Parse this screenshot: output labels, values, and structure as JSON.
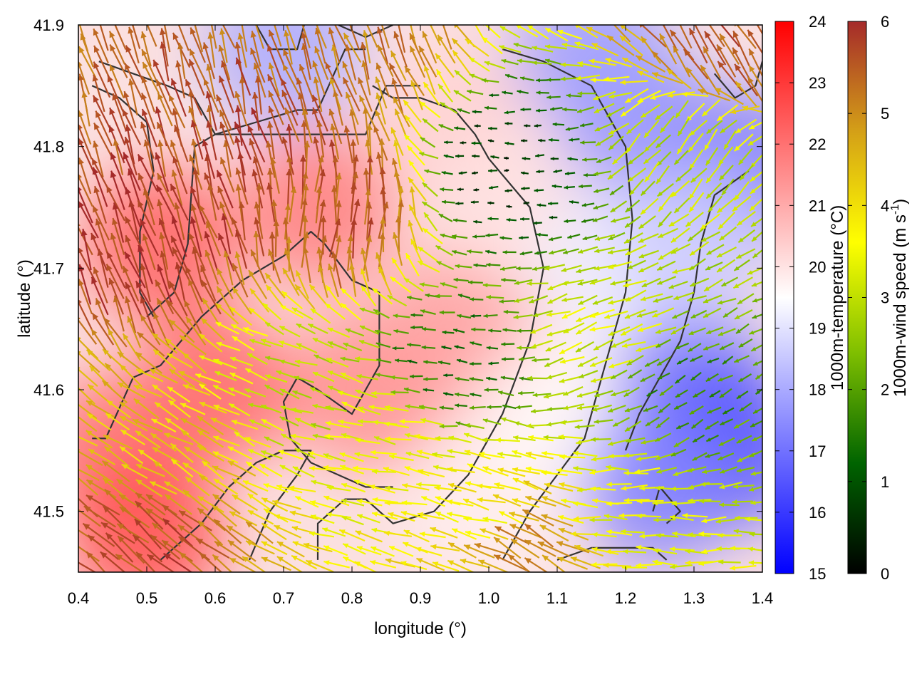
{
  "chart_data": {
    "type": "heatmap",
    "title": "",
    "xlabel": "longitude (°)",
    "ylabel": "latitude (°)",
    "xlim": [
      0.4,
      1.4
    ],
    "ylim": [
      41.45,
      41.9
    ],
    "xticks": [
      "0.4",
      "0.5",
      "0.6",
      "0.7",
      "0.8",
      "0.9",
      "1.0",
      "1.1",
      "1.2",
      "1.3",
      "1.4"
    ],
    "yticks": [
      "41.5",
      "41.6",
      "41.7",
      "41.8",
      "41.9"
    ],
    "temperature_colorbar": {
      "label": "1000m-temperature (°C)",
      "range": [
        15,
        24
      ],
      "ticks": [
        "15",
        "16",
        "17",
        "18",
        "19",
        "20",
        "21",
        "22",
        "23",
        "24"
      ],
      "colors": [
        "#0000ff",
        "#ffffff",
        "#ff0000"
      ]
    },
    "wind_colorbar": {
      "label_main": "1000m-wind speed (m s",
      "label_sup": "-1",
      "label_end": ")",
      "range": [
        0,
        6
      ],
      "ticks": [
        "0",
        "1",
        "2",
        "3",
        "4",
        "5",
        "6"
      ],
      "colors": [
        "#000000",
        "#006400",
        "#7fbf00",
        "#ffff00",
        "#d4a017",
        "#a52a2a"
      ]
    },
    "temperature_regions": [
      {
        "lon": 0.52,
        "lat": 41.72,
        "t": 22.3
      },
      {
        "lon": 0.45,
        "lat": 41.55,
        "t": 22.0
      },
      {
        "lon": 0.6,
        "lat": 41.6,
        "t": 22.2
      },
      {
        "lon": 0.75,
        "lat": 41.75,
        "t": 21.8
      },
      {
        "lon": 0.5,
        "lat": 41.48,
        "t": 22.6
      },
      {
        "lon": 0.82,
        "lat": 41.6,
        "t": 21.5
      },
      {
        "lon": 0.95,
        "lat": 41.65,
        "t": 21.2
      },
      {
        "lon": 0.95,
        "lat": 41.82,
        "t": 20.3
      },
      {
        "lon": 1.05,
        "lat": 41.75,
        "t": 20.0
      },
      {
        "lon": 1.0,
        "lat": 41.5,
        "t": 19.8
      },
      {
        "lon": 1.1,
        "lat": 41.58,
        "t": 19.6
      },
      {
        "lon": 1.18,
        "lat": 41.7,
        "t": 19.2
      },
      {
        "lon": 1.3,
        "lat": 41.6,
        "t": 17.0
      },
      {
        "lon": 1.35,
        "lat": 41.55,
        "t": 16.4
      },
      {
        "lon": 1.25,
        "lat": 41.52,
        "t": 17.3
      },
      {
        "lon": 1.22,
        "lat": 41.82,
        "t": 17.6
      },
      {
        "lon": 1.15,
        "lat": 41.88,
        "t": 17.8
      },
      {
        "lon": 0.7,
        "lat": 41.88,
        "t": 18.0
      },
      {
        "lon": 1.38,
        "lat": 41.78,
        "t": 17.2
      },
      {
        "lon": 1.3,
        "lat": 41.72,
        "t": 18.6
      }
    ],
    "wind_regions": [
      {
        "lon": 0.5,
        "lat": 41.72,
        "speed": 5.8,
        "dir_deg": 110
      },
      {
        "lon": 0.65,
        "lat": 41.8,
        "speed": 5.6,
        "dir_deg": 105
      },
      {
        "lon": 0.78,
        "lat": 41.75,
        "speed": 5.5,
        "dir_deg": 85
      },
      {
        "lon": 0.55,
        "lat": 41.55,
        "speed": 4.2,
        "dir_deg": 150
      },
      {
        "lon": 0.72,
        "lat": 41.6,
        "speed": 3.0,
        "dir_deg": 160
      },
      {
        "lon": 0.5,
        "lat": 41.47,
        "speed": 5.6,
        "dir_deg": 140
      },
      {
        "lon": 0.85,
        "lat": 41.55,
        "speed": 3.5,
        "dir_deg": 170
      },
      {
        "lon": 0.95,
        "lat": 41.62,
        "speed": 1.4,
        "dir_deg": 175
      },
      {
        "lon": 1.03,
        "lat": 41.78,
        "speed": 0.7,
        "dir_deg": 180
      },
      {
        "lon": 1.0,
        "lat": 41.5,
        "speed": 3.8,
        "dir_deg": 165
      },
      {
        "lon": 1.18,
        "lat": 41.65,
        "speed": 3.2,
        "dir_deg": 200
      },
      {
        "lon": 1.28,
        "lat": 41.6,
        "speed": 1.8,
        "dir_deg": 210
      },
      {
        "lon": 1.3,
        "lat": 41.8,
        "speed": 3.0,
        "dir_deg": 230
      },
      {
        "lon": 1.35,
        "lat": 41.88,
        "speed": 5.5,
        "dir_deg": 120
      },
      {
        "lon": 0.8,
        "lat": 41.88,
        "speed": 5.2,
        "dir_deg": 110
      },
      {
        "lon": 1.05,
        "lat": 41.47,
        "speed": 5.0,
        "dir_deg": 150
      },
      {
        "lon": 1.2,
        "lat": 41.5,
        "speed": 3.4,
        "dir_deg": 180
      }
    ],
    "contours": [
      [
        [
          0.42,
          41.56
        ],
        [
          0.44,
          41.56
        ],
        [
          0.48,
          41.61
        ],
        [
          0.52,
          41.62
        ],
        [
          0.58,
          41.66
        ],
        [
          0.64,
          41.69
        ],
        [
          0.7,
          41.71
        ],
        [
          0.74,
          41.73
        ],
        [
          0.76,
          41.72
        ],
        [
          0.8,
          41.69
        ],
        [
          0.84,
          41.68
        ],
        [
          0.84,
          41.62
        ],
        [
          0.82,
          41.6
        ],
        [
          0.8,
          41.58
        ],
        [
          0.75,
          41.6
        ],
        [
          0.72,
          41.61
        ],
        [
          0.7,
          41.59
        ],
        [
          0.71,
          41.56
        ],
        [
          0.74,
          41.54
        ],
        [
          0.78,
          41.53
        ],
        [
          0.82,
          41.52
        ],
        [
          0.86,
          41.52
        ]
      ],
      [
        [
          0.52,
          41.46
        ],
        [
          0.58,
          41.49
        ],
        [
          0.62,
          41.52
        ],
        [
          0.66,
          41.54
        ],
        [
          0.7,
          41.55
        ],
        [
          0.74,
          41.55
        ],
        [
          0.72,
          41.53
        ],
        [
          0.68,
          41.5
        ],
        [
          0.65,
          41.46
        ]
      ],
      [
        [
          0.5,
          41.66
        ],
        [
          0.54,
          41.68
        ],
        [
          0.56,
          41.72
        ],
        [
          0.57,
          41.8
        ],
        [
          0.6,
          41.81
        ],
        [
          0.66,
          41.81
        ],
        [
          0.72,
          41.81
        ],
        [
          0.78,
          41.81
        ],
        [
          0.82,
          41.81
        ],
        [
          0.85,
          41.85
        ],
        [
          0.9,
          41.85
        ]
      ],
      [
        [
          0.43,
          41.87
        ],
        [
          0.48,
          41.86
        ],
        [
          0.53,
          41.85
        ],
        [
          0.57,
          41.84
        ],
        [
          0.6,
          41.81
        ],
        [
          0.66,
          41.82
        ],
        [
          0.72,
          41.83
        ],
        [
          0.75,
          41.83
        ],
        [
          0.79,
          41.88
        ],
        [
          0.82,
          41.88
        ]
      ],
      [
        [
          0.42,
          41.85
        ],
        [
          0.46,
          41.84
        ],
        [
          0.5,
          41.82
        ],
        [
          0.51,
          41.78
        ],
        [
          0.49,
          41.73
        ],
        [
          0.49,
          41.68
        ],
        [
          0.51,
          41.66
        ]
      ],
      [
        [
          0.66,
          41.9
        ],
        [
          0.68,
          41.88
        ],
        [
          0.72,
          41.88
        ],
        [
          0.73,
          41.9
        ]
      ],
      [
        [
          0.78,
          41.9
        ],
        [
          0.82,
          41.89
        ],
        [
          0.86,
          41.9
        ]
      ],
      [
        [
          0.75,
          41.46
        ],
        [
          0.75,
          41.49
        ],
        [
          0.79,
          41.51
        ],
        [
          0.82,
          41.51
        ],
        [
          0.86,
          41.49
        ],
        [
          0.92,
          41.5
        ],
        [
          0.97,
          41.53
        ],
        [
          1.02,
          41.58
        ],
        [
          1.06,
          41.64
        ],
        [
          1.08,
          41.7
        ],
        [
          1.06,
          41.75
        ],
        [
          1.0,
          41.79
        ],
        [
          0.98,
          41.81
        ],
        [
          0.95,
          41.83
        ],
        [
          0.9,
          41.84
        ],
        [
          0.86,
          41.84
        ],
        [
          0.83,
          41.85
        ]
      ],
      [
        [
          1.02,
          41.46
        ],
        [
          1.06,
          41.5
        ],
        [
          1.1,
          41.53
        ],
        [
          1.14,
          41.56
        ],
        [
          1.17,
          41.62
        ],
        [
          1.2,
          41.68
        ],
        [
          1.21,
          41.74
        ],
        [
          1.2,
          41.8
        ],
        [
          1.15,
          41.85
        ],
        [
          1.08,
          41.87
        ],
        [
          1.02,
          41.88
        ]
      ],
      [
        [
          1.1,
          41.46
        ],
        [
          1.15,
          41.47
        ],
        [
          1.2,
          41.47
        ],
        [
          1.24,
          41.47
        ],
        [
          1.26,
          41.46
        ]
      ],
      [
        [
          1.2,
          41.55
        ],
        [
          1.22,
          41.58
        ],
        [
          1.24,
          41.6
        ],
        [
          1.28,
          41.64
        ],
        [
          1.3,
          41.68
        ],
        [
          1.31,
          41.72
        ],
        [
          1.33,
          41.76
        ],
        [
          1.38,
          41.78
        ]
      ],
      [
        [
          1.24,
          41.5
        ],
        [
          1.25,
          41.52
        ],
        [
          1.28,
          41.5
        ],
        [
          1.26,
          41.49
        ]
      ],
      [
        [
          1.33,
          41.86
        ],
        [
          1.36,
          41.84
        ],
        [
          1.39,
          41.85
        ],
        [
          1.4,
          41.87
        ]
      ]
    ]
  }
}
